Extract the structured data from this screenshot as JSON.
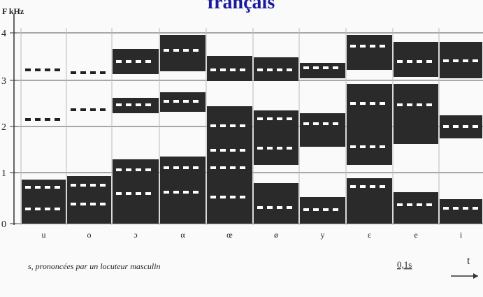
{
  "header": {
    "title": "français",
    "axis_label": "F kHz"
  },
  "axis": {
    "ticks": [
      "0",
      "1",
      "2",
      "3",
      "4"
    ]
  },
  "vowels": [
    "u",
    "o",
    "ɔ",
    "α",
    "œ",
    "ø",
    "y",
    "ɛ",
    "e",
    "i"
  ],
  "scale": {
    "duration": "0,1s",
    "time_axis": "t"
  },
  "caption": "s, prononcées par un locuteur masculin"
}
